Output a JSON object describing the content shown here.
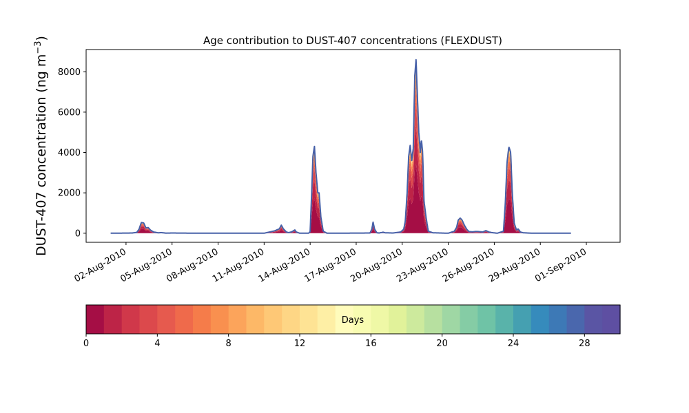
{
  "chart_data": {
    "type": "area",
    "title": "Age contribution to DUST-407 concentrations (FLEXDUST)",
    "ylabel_main": "DUST-407 concentration (ng m",
    "ylabel_sup": "−3",
    "ylabel_close": ")",
    "xlabel": "",
    "ylim": [
      -450,
      9100
    ],
    "yticks": [
      0,
      2000,
      4000,
      6000,
      8000
    ],
    "xlim_days": [
      -1.6,
      33.2
    ],
    "x_unit": "days since 01-Aug-2010",
    "xticks": [
      {
        "day": 1,
        "label": "02-Aug-2010"
      },
      {
        "day": 4,
        "label": "05-Aug-2010"
      },
      {
        "day": 7,
        "label": "08-Aug-2010"
      },
      {
        "day": 10,
        "label": "11-Aug-2010"
      },
      {
        "day": 13,
        "label": "14-Aug-2010"
      },
      {
        "day": 16,
        "label": "17-Aug-2010"
      },
      {
        "day": 19,
        "label": "20-Aug-2010"
      },
      {
        "day": 22,
        "label": "23-Aug-2010"
      },
      {
        "day": 25,
        "label": "26-Aug-2010"
      },
      {
        "day": 28,
        "label": "29-Aug-2010"
      },
      {
        "day": 31,
        "label": "01-Sep-2010"
      }
    ],
    "total_series": {
      "name": "total",
      "color": "#4660a8",
      "points": [
        [
          0,
          0
        ],
        [
          1.4,
          10
        ],
        [
          1.7,
          40
        ],
        [
          1.85,
          200
        ],
        [
          2.0,
          530
        ],
        [
          2.15,
          510
        ],
        [
          2.3,
          260
        ],
        [
          2.45,
          280
        ],
        [
          2.6,
          150
        ],
        [
          2.8,
          60
        ],
        [
          3.1,
          20
        ],
        [
          3.3,
          30
        ],
        [
          3.6,
          5
        ],
        [
          4.0,
          10
        ],
        [
          5.0,
          5
        ],
        [
          6.0,
          0
        ],
        [
          9.0,
          0
        ],
        [
          10.0,
          0
        ],
        [
          10.3,
          50
        ],
        [
          10.7,
          120
        ],
        [
          11.0,
          220
        ],
        [
          11.12,
          400
        ],
        [
          11.25,
          220
        ],
        [
          11.45,
          60
        ],
        [
          11.6,
          30
        ],
        [
          11.8,
          70
        ],
        [
          12.0,
          160
        ],
        [
          12.1,
          60
        ],
        [
          12.3,
          5
        ],
        [
          12.9,
          0
        ],
        [
          13.0,
          80
        ],
        [
          13.1,
          2000
        ],
        [
          13.18,
          3800
        ],
        [
          13.28,
          4300
        ],
        [
          13.38,
          3000
        ],
        [
          13.5,
          2000
        ],
        [
          13.58,
          2000
        ],
        [
          13.7,
          800
        ],
        [
          13.85,
          100
        ],
        [
          14.1,
          0
        ],
        [
          16.9,
          10
        ],
        [
          17.02,
          200
        ],
        [
          17.1,
          550
        ],
        [
          17.2,
          200
        ],
        [
          17.35,
          20
        ],
        [
          17.5,
          10
        ],
        [
          17.75,
          50
        ],
        [
          17.9,
          20
        ],
        [
          18.4,
          10
        ],
        [
          18.9,
          60
        ],
        [
          19.1,
          200
        ],
        [
          19.2,
          600
        ],
        [
          19.32,
          2000
        ],
        [
          19.42,
          3800
        ],
        [
          19.52,
          4350
        ],
        [
          19.62,
          3600
        ],
        [
          19.72,
          4200
        ],
        [
          19.82,
          7800
        ],
        [
          19.9,
          8600
        ],
        [
          19.98,
          7000
        ],
        [
          20.08,
          5000
        ],
        [
          20.18,
          4000
        ],
        [
          20.25,
          4650
        ],
        [
          20.33,
          4000
        ],
        [
          20.42,
          1600
        ],
        [
          20.55,
          800
        ],
        [
          20.7,
          100
        ],
        [
          21.0,
          20
        ],
        [
          22.0,
          0
        ],
        [
          22.4,
          100
        ],
        [
          22.55,
          300
        ],
        [
          22.65,
          650
        ],
        [
          22.78,
          750
        ],
        [
          22.9,
          650
        ],
        [
          23.05,
          400
        ],
        [
          23.2,
          200
        ],
        [
          23.35,
          80
        ],
        [
          23.6,
          70
        ],
        [
          23.8,
          90
        ],
        [
          24.0,
          80
        ],
        [
          24.25,
          60
        ],
        [
          24.45,
          130
        ],
        [
          24.65,
          60
        ],
        [
          24.85,
          30
        ],
        [
          25.2,
          0
        ],
        [
          25.6,
          100
        ],
        [
          25.72,
          1500
        ],
        [
          25.83,
          3500
        ],
        [
          25.95,
          4280
        ],
        [
          26.07,
          4000
        ],
        [
          26.17,
          2000
        ],
        [
          26.3,
          500
        ],
        [
          26.45,
          150
        ],
        [
          26.55,
          220
        ],
        [
          26.7,
          60
        ],
        [
          26.9,
          20
        ],
        [
          27.5,
          0
        ],
        [
          30.0,
          0
        ]
      ]
    },
    "age_colorbar": {
      "label": "Days",
      "range": [
        0,
        30
      ],
      "ticks": [
        0,
        4,
        8,
        12,
        16,
        20,
        24,
        28
      ],
      "colors": [
        "#a50e45",
        "#bd2447",
        "#d0384a",
        "#dc494c",
        "#e65a4e",
        "#ef6a4b",
        "#f57c4a",
        "#f9904f",
        "#fca45b",
        "#fdb867",
        "#fec876",
        "#fed685",
        "#fee394",
        "#feefa5",
        "#fffcbc",
        "#f8fcb1",
        "#eff8a6",
        "#e1f29a",
        "#cdea9d",
        "#b7e0a0",
        "#9fd7a4",
        "#85cca5",
        "#6fc3a6",
        "#59b3aa",
        "#45a0b1",
        "#368bbc",
        "#3d79b6",
        "#4a67ad",
        "#5a55a4",
        "#5e4fa2"
      ]
    }
  }
}
